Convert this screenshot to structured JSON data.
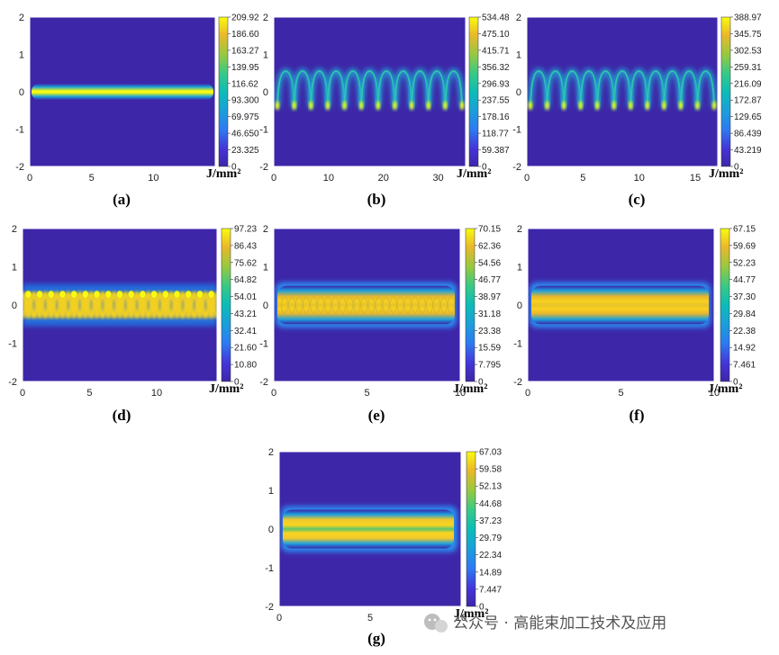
{
  "chart_data": [
    {
      "type": "heatmap",
      "panel_label": "(a)",
      "unit": "J/mm²",
      "pattern": "line",
      "yticks": [
        "2",
        "1",
        "0",
        "-1",
        "-2"
      ],
      "xticks": [
        "0",
        "5",
        "10"
      ],
      "xlim": [
        0,
        15
      ],
      "ylim": [
        -2,
        2
      ],
      "colorbar_ticks": [
        "209.92",
        "186.60",
        "163.27",
        "139.95",
        "116.62",
        "93.300",
        "69.975",
        "46.650",
        "23.325",
        "0"
      ],
      "colorbar_range": [
        0,
        209.92
      ]
    },
    {
      "type": "heatmap",
      "panel_label": "(b)",
      "unit": "J/mm²",
      "pattern": "arcs",
      "yticks": [
        "2",
        "1",
        "0",
        "-1",
        "-2"
      ],
      "xticks": [
        "0",
        "10",
        "20",
        "30"
      ],
      "xlim": [
        0,
        35
      ],
      "ylim": [
        -2,
        2
      ],
      "colorbar_ticks": [
        "534.48",
        "475.10",
        "415.71",
        "356.32",
        "296.93",
        "237.55",
        "178.16",
        "118.77",
        "59.387",
        "0"
      ],
      "colorbar_range": [
        0,
        534.48
      ]
    },
    {
      "type": "heatmap",
      "panel_label": "(c)",
      "unit": "J/mm²",
      "pattern": "arcs",
      "yticks": [
        "2",
        "1",
        "0",
        "-1",
        "-2"
      ],
      "xticks": [
        "0",
        "5",
        "10",
        "15"
      ],
      "xlim": [
        0,
        17
      ],
      "ylim": [
        -2,
        2
      ],
      "colorbar_ticks": [
        "388.97",
        "345.75",
        "302.53",
        "259.31",
        "216.09",
        "172.87",
        "129.65",
        "86.439",
        "43.219",
        "0"
      ],
      "colorbar_range": [
        0,
        388.97
      ]
    },
    {
      "type": "heatmap",
      "panel_label": "(d)",
      "unit": "J/mm²",
      "pattern": "sine",
      "yticks": [
        "2",
        "1",
        "0",
        "-1",
        "-2"
      ],
      "xticks": [
        "0",
        "5",
        "10"
      ],
      "xlim": [
        0,
        14.5
      ],
      "ylim": [
        -2,
        2
      ],
      "colorbar_ticks": [
        "97.23",
        "86.43",
        "75.62",
        "64.82",
        "54.01",
        "43.21",
        "32.41",
        "21.60",
        "10.80",
        "0"
      ],
      "colorbar_range": [
        0,
        97.23
      ]
    },
    {
      "type": "heatmap",
      "panel_label": "(e)",
      "unit": "J/mm²",
      "pattern": "band-dense",
      "yticks": [
        "2",
        "1",
        "0",
        "-1",
        "-2"
      ],
      "xticks": [
        "0",
        "5",
        "10"
      ],
      "xlim": [
        0,
        10
      ],
      "ylim": [
        -2,
        2
      ],
      "colorbar_ticks": [
        "70.15",
        "62.36",
        "54.56",
        "46.77",
        "38.97",
        "31.18",
        "23.38",
        "15.59",
        "7.795",
        "0"
      ],
      "colorbar_range": [
        0,
        70.15
      ]
    },
    {
      "type": "heatmap",
      "panel_label": "(f)",
      "unit": "J/mm²",
      "pattern": "band",
      "yticks": [
        "2",
        "1",
        "0",
        "-1",
        "-2"
      ],
      "xticks": [
        "0",
        "5",
        "10"
      ],
      "xlim": [
        0,
        10
      ],
      "ylim": [
        -2,
        2
      ],
      "colorbar_ticks": [
        "67.15",
        "59.69",
        "52.23",
        "44.77",
        "37.30",
        "29.84",
        "22.38",
        "14.92",
        "7.461",
        "0"
      ],
      "colorbar_range": [
        0,
        67.15
      ]
    },
    {
      "type": "heatmap",
      "panel_label": "(g)",
      "unit": "J/mm²",
      "pattern": "band-split",
      "yticks": [
        "2",
        "1",
        "0",
        "-1",
        "-2"
      ],
      "xticks": [
        "0",
        "5",
        "10"
      ],
      "xlim": [
        0,
        10
      ],
      "ylim": [
        -2,
        2
      ],
      "colorbar_ticks": [
        "67.03",
        "59.58",
        "52.13",
        "44.68",
        "37.23",
        "29.79",
        "22.34",
        "14.89",
        "7.447",
        "0"
      ],
      "colorbar_range": [
        0,
        67.03
      ]
    }
  ],
  "colors": {
    "low": "#3e26a8",
    "mid": "#1fb7a6",
    "high": "#f9fb0e"
  },
  "watermark": {
    "icon": "wechat-icon",
    "text": "公众号 · 高能束加工技术及应用"
  }
}
